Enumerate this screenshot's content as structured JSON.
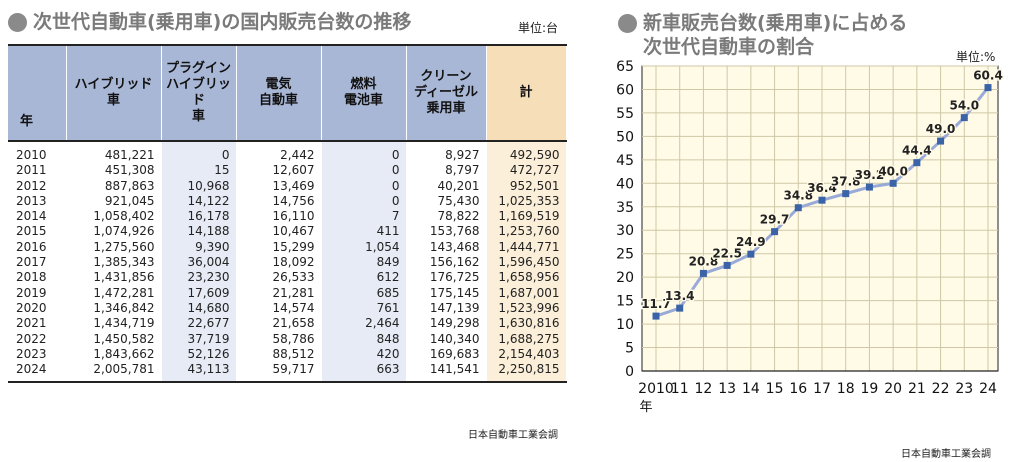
{
  "left": {
    "title": "次世代自動車(乗用車)の国内販売台数の推移",
    "unit": "単位:台",
    "source": "日本自動車工業会調",
    "headers": {
      "year": "年",
      "hybrid": "ハイブリッド\n車",
      "phv": "プラグイン\nハイブリッド\n車",
      "ev": "電気\n自動車",
      "fcv": "燃料\n電池車",
      "cdv": "クリーン\nディーゼル\n乗用車",
      "total": "計"
    },
    "rows": [
      [
        "2010",
        "481,221",
        "0",
        "2,442",
        "0",
        "8,927",
        "492,590"
      ],
      [
        "2011",
        "451,308",
        "15",
        "12,607",
        "0",
        "8,797",
        "472,727"
      ],
      [
        "2012",
        "887,863",
        "10,968",
        "13,469",
        "0",
        "40,201",
        "952,501"
      ],
      [
        "2013",
        "921,045",
        "14,122",
        "14,756",
        "0",
        "75,430",
        "1,025,353"
      ],
      [
        "2014",
        "1,058,402",
        "16,178",
        "16,110",
        "7",
        "78,822",
        "1,169,519"
      ],
      [
        "2015",
        "1,074,926",
        "14,188",
        "10,467",
        "411",
        "153,768",
        "1,253,760"
      ],
      [
        "2016",
        "1,275,560",
        "9,390",
        "15,299",
        "1,054",
        "143,468",
        "1,444,771"
      ],
      [
        "2017",
        "1,385,343",
        "36,004",
        "18,092",
        "849",
        "156,162",
        "1,596,450"
      ],
      [
        "2018",
        "1,431,856",
        "23,230",
        "26,533",
        "612",
        "176,725",
        "1,658,956"
      ],
      [
        "2019",
        "1,472,281",
        "17,609",
        "21,281",
        "685",
        "175,145",
        "1,687,001"
      ],
      [
        "2020",
        "1,346,842",
        "14,680",
        "14,574",
        "761",
        "147,139",
        "1,523,996"
      ],
      [
        "2021",
        "1,434,719",
        "22,677",
        "21,658",
        "2,464",
        "149,298",
        "1,630,816"
      ],
      [
        "2022",
        "1,450,582",
        "37,719",
        "58,786",
        "848",
        "140,340",
        "1,688,275"
      ],
      [
        "2023",
        "1,843,662",
        "52,126",
        "88,512",
        "420",
        "169,683",
        "2,154,403"
      ],
      [
        "2024",
        "2,005,781",
        "43,113",
        "59,717",
        "663",
        "141,541",
        "2,250,815"
      ]
    ]
  },
  "right": {
    "title_line1": "新車販売台数(乗用車)に占める",
    "title_line2": "次世代自動車の割合",
    "unit": "単位:%",
    "source": "日本自動車工業会調"
  },
  "chart_data": {
    "type": "line",
    "categories": [
      "2010",
      "11",
      "12",
      "13",
      "14",
      "15",
      "16",
      "17",
      "18",
      "19",
      "20",
      "21",
      "22",
      "23",
      "24"
    ],
    "x_unit_label": "年",
    "values": [
      11.7,
      13.4,
      20.8,
      22.5,
      24.9,
      29.7,
      34.8,
      36.4,
      37.8,
      39.2,
      40.0,
      44.4,
      49.0,
      54.0,
      60.4
    ],
    "ylim": [
      0,
      65
    ],
    "yticks": [
      0,
      5,
      10,
      15,
      20,
      25,
      30,
      35,
      40,
      45,
      50,
      55,
      60,
      65
    ],
    "grid": true,
    "line_color": "#9aaad8",
    "marker_color": "#3a63a8",
    "grid_color": "#cfc7a6",
    "background_color": "#fffbe7"
  }
}
